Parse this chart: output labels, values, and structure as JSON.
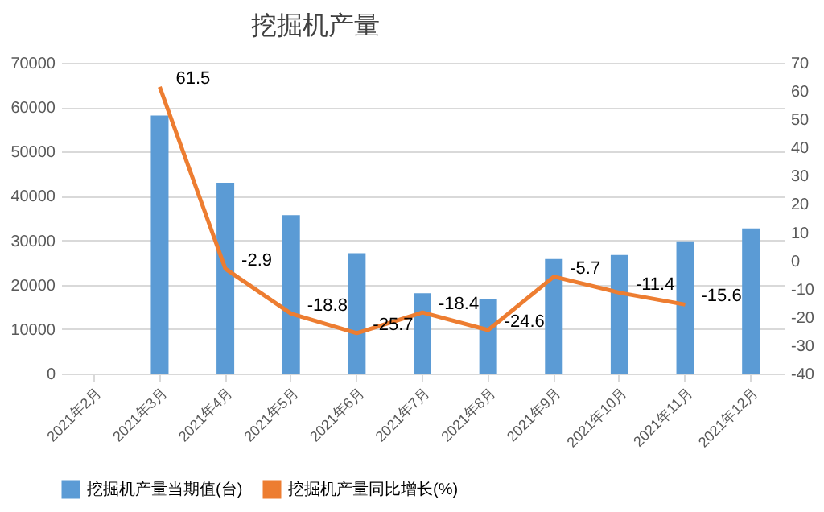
{
  "chart_data": {
    "type": "bar",
    "title": "挖掘机产量",
    "categories": [
      "2021年2月",
      "2021年3月",
      "2021年4月",
      "2021年5月",
      "2021年6月",
      "2021年7月",
      "2021年8月",
      "2021年9月",
      "2021年10月",
      "2021年11月",
      "2021年12月"
    ],
    "series": [
      {
        "name": "挖掘机产量当期值(台)",
        "color": "#5b9bd5",
        "values": [
          null,
          58100,
          43000,
          35700,
          27100,
          18100,
          16800,
          25800,
          26700,
          29800,
          32700
        ]
      },
      {
        "name": "挖掘机产量同比增长(%)",
        "type": "line",
        "axis": "y2",
        "color": "#ed7d31",
        "values": [
          null,
          61.5,
          -2.9,
          -18.8,
          -25.7,
          -18.4,
          -24.6,
          -5.7,
          -11.4,
          -15.6,
          null
        ],
        "value_labels": [
          null,
          "61.5",
          "-2.9",
          "-18.8",
          "-25.7",
          "-18.4",
          "-24.6",
          "-5.7",
          "-11.4",
          "-15.6",
          null
        ]
      }
    ],
    "ylim": [
      0,
      70000
    ],
    "yticks": [
      0,
      10000,
      20000,
      30000,
      40000,
      50000,
      60000,
      70000
    ],
    "y2lim": [
      -40,
      70
    ],
    "y2ticks": [
      -40,
      -30,
      -20,
      -10,
      0,
      10,
      20,
      30,
      40,
      50,
      60,
      70
    ],
    "grid": "y",
    "legend": "bottom"
  }
}
